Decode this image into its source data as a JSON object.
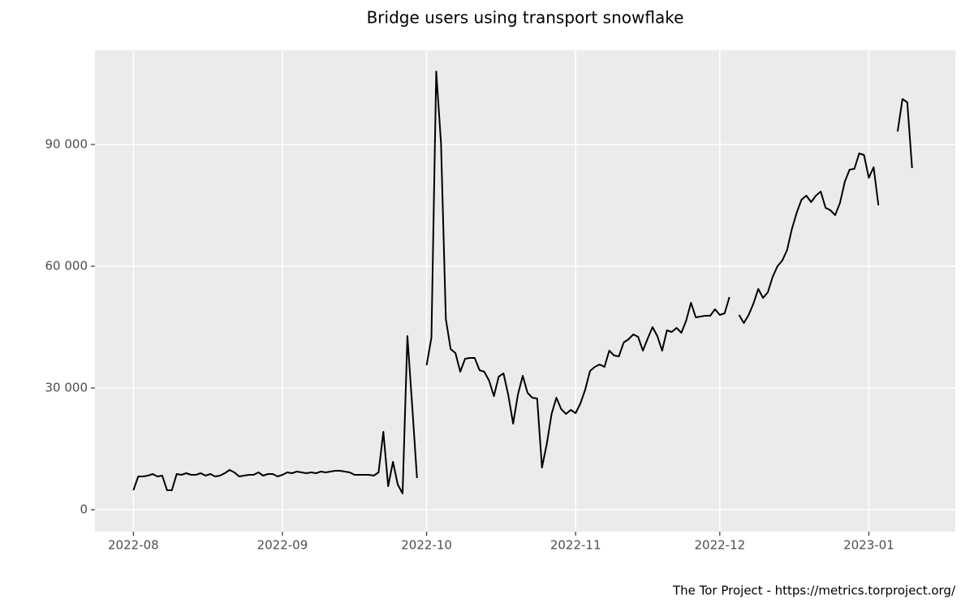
{
  "chart_data": {
    "type": "line",
    "title": "Bridge users using transport snowflake",
    "caption": "The Tor Project - https://metrics.torproject.org/",
    "color": "#000000",
    "grid": true,
    "x": [
      0,
      1,
      2,
      3,
      4,
      5,
      6,
      7,
      8,
      9,
      10,
      11,
      12,
      13,
      14,
      15,
      16,
      17,
      18,
      19,
      20,
      21,
      22,
      23,
      24,
      25,
      26,
      27,
      28,
      29,
      30,
      31,
      32,
      33,
      34,
      35,
      36,
      37,
      38,
      39,
      40,
      41,
      42,
      43,
      44,
      45,
      46,
      47,
      48,
      49,
      50,
      51,
      52,
      53,
      54,
      55,
      56,
      57,
      58,
      59,
      60,
      61,
      62,
      63,
      64,
      65,
      66,
      67,
      68,
      69,
      70,
      71,
      72,
      73,
      74,
      75,
      76,
      77,
      78,
      79,
      80,
      81,
      82,
      83,
      84,
      85,
      86,
      87,
      88,
      89,
      90,
      91,
      92,
      93,
      94,
      95,
      96,
      97,
      98,
      99,
      100,
      101,
      102,
      103,
      104,
      105,
      106,
      107,
      108,
      109,
      110,
      111,
      112,
      113,
      114,
      115,
      116,
      117,
      118,
      119,
      120,
      121,
      122,
      123,
      124,
      125,
      126,
      127,
      128,
      129,
      130,
      131,
      132,
      133,
      134,
      135,
      136,
      137,
      138,
      139,
      140,
      141,
      142,
      143,
      144,
      145,
      146,
      147,
      148,
      149,
      150,
      151,
      152,
      153,
      154,
      155,
      156,
      157,
      158,
      159,
      160,
      161,
      162
    ],
    "values": [
      4800,
      8200,
      8200,
      8400,
      8800,
      8200,
      8400,
      4800,
      4800,
      8800,
      8600,
      9000,
      8600,
      8600,
      9000,
      8400,
      8800,
      8200,
      8400,
      9000,
      9800,
      9200,
      8200,
      8400,
      8600,
      8600,
      9200,
      8400,
      8800,
      8800,
      8200,
      8600,
      9200,
      9000,
      9400,
      9200,
      9000,
      9200,
      9000,
      9400,
      9200,
      9400,
      9600,
      9600,
      9400,
      9200,
      8600,
      8600,
      8600,
      8600,
      8400,
      9200,
      19200,
      5800,
      11800,
      6200,
      4000,
      42800,
      25600,
      7800,
      null,
      35600,
      42400,
      108000,
      90200,
      47000,
      39600,
      38600,
      34000,
      37200,
      37400,
      37400,
      34400,
      34000,
      31800,
      28000,
      32800,
      33600,
      28200,
      21200,
      28400,
      33000,
      28800,
      27600,
      27400,
      10400,
      16200,
      23600,
      27600,
      24800,
      23600,
      24600,
      23800,
      26200,
      29600,
      34200,
      35200,
      35800,
      35200,
      39200,
      38000,
      37800,
      41200,
      42000,
      43200,
      42600,
      39200,
      42200,
      45000,
      42800,
      39200,
      44200,
      43800,
      44800,
      43600,
      46600,
      51000,
      47400,
      47600,
      47800,
      47800,
      49400,
      48000,
      48400,
      52400,
      null,
      48000,
      46000,
      48000,
      50800,
      54400,
      52200,
      53600,
      57400,
      60000,
      61400,
      64000,
      69200,
      73200,
      76400,
      77400,
      75800,
      77400,
      78400,
      74400,
      73800,
      72600,
      75600,
      80800,
      83800,
      84000,
      87800,
      87400,
      81800,
      84400,
      75000,
      null,
      null,
      null,
      93200,
      101200,
      100400,
      84200
    ],
    "xlim": [
      -8,
      171
    ],
    "xticks": [
      {
        "value": 0,
        "label": "2022-08"
      },
      {
        "value": 31,
        "label": "2022-09"
      },
      {
        "value": 61,
        "label": "2022-10"
      },
      {
        "value": 92,
        "label": "2022-11"
      },
      {
        "value": 122,
        "label": "2022-12"
      },
      {
        "value": 153,
        "label": "2023-01"
      }
    ],
    "ylim": [
      -5400,
      113200
    ],
    "yticks": [
      0,
      {
        "value": 30000,
        "label": "30 000"
      },
      {
        "value": 60000,
        "label": "60 000"
      },
      {
        "value": 90000,
        "label": "90 000"
      }
    ]
  }
}
